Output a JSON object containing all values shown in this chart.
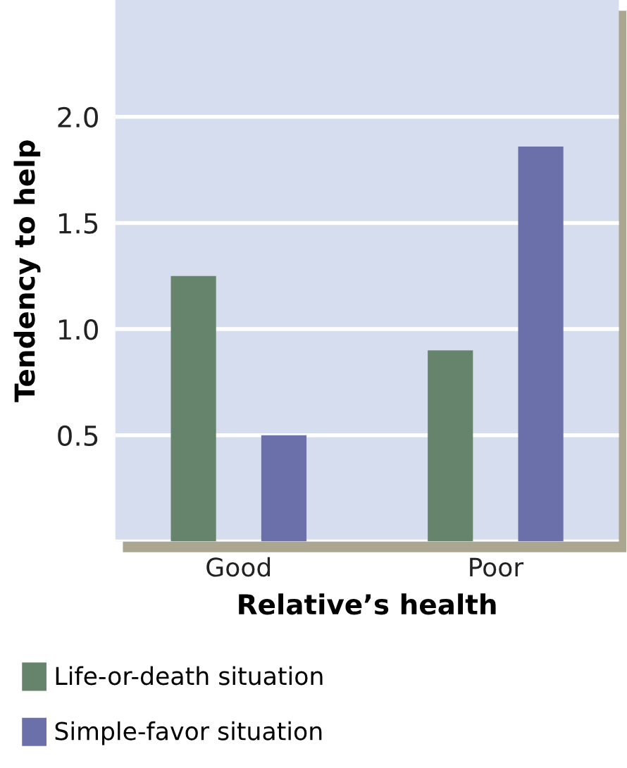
{
  "chart_data": {
    "type": "bar",
    "xlabel": "Relative’s health",
    "ylabel": "Tendency to help",
    "categories": [
      "Good",
      "Poor"
    ],
    "series": [
      {
        "name": "Life-or-death situation",
        "color": "#66846b",
        "values": [
          1.25,
          0.9
        ]
      },
      {
        "name": "Simple-favor situation",
        "color": "#6b70aa",
        "values": [
          0.5,
          1.86
        ]
      }
    ],
    "ylim": [
      0,
      2.55
    ],
    "yticks": [
      {
        "value": 0,
        "label": null
      },
      0.5,
      {
        "value": 1,
        "label": "1.0"
      },
      1.5,
      {
        "value": 2,
        "label": "2.0"
      }
    ],
    "grid": "y",
    "legend": "bottom left"
  }
}
